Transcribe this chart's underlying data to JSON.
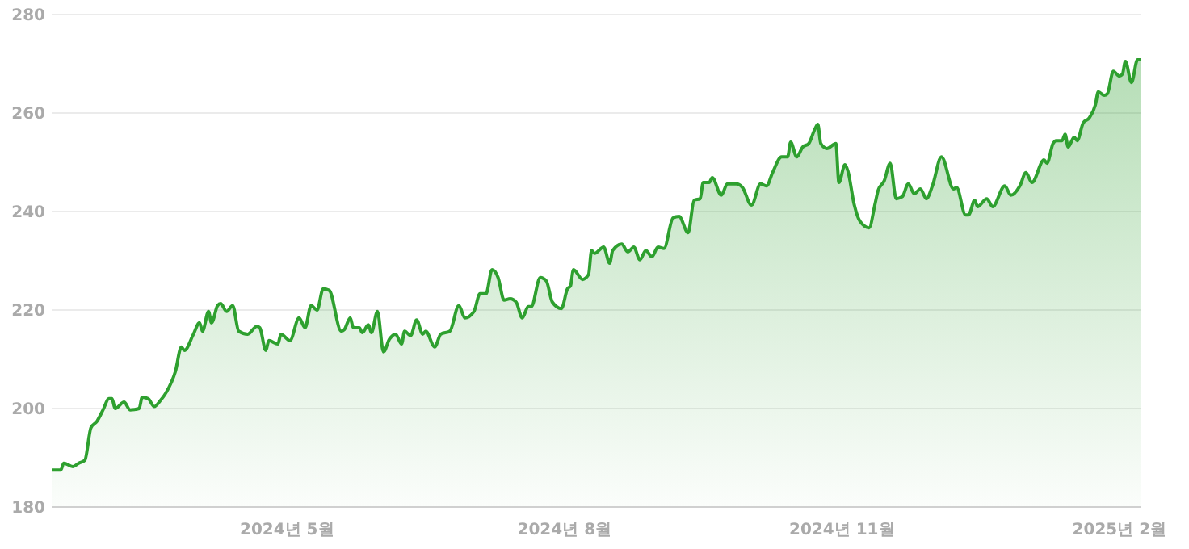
{
  "chart_data": {
    "type": "area",
    "xlim": [
      "2024-02-13",
      "2025-02-08"
    ],
    "ylim": [
      180,
      280
    ],
    "yticks": [
      180,
      200,
      220,
      240,
      260,
      280
    ],
    "xticks": [
      {
        "value": "2024-05-01",
        "label": "2024년 5월"
      },
      {
        "value": "2024-08-01",
        "label": "2024년 8월"
      },
      {
        "value": "2024-11-01",
        "label": "2024년 11월"
      },
      {
        "value": "2025-02-01",
        "label": "2025년 2월"
      }
    ],
    "grid": "y",
    "series": [
      {
        "color": "#2ea02f",
        "x": [
          "2024-02-13",
          "2024-02-16",
          "2024-02-17",
          "2024-02-20",
          "2024-02-22",
          "2024-02-24",
          "2024-02-26",
          "2024-02-28",
          "2024-03-01",
          "2024-03-03",
          "2024-03-04",
          "2024-03-05",
          "2024-03-08",
          "2024-03-10",
          "2024-03-13",
          "2024-03-14",
          "2024-03-16",
          "2024-03-18",
          "2024-03-20",
          "2024-03-22",
          "2024-03-25",
          "2024-03-27",
          "2024-03-28",
          "2024-03-31",
          "2024-04-02",
          "2024-04-03",
          "2024-04-05",
          "2024-04-06",
          "2024-04-08",
          "2024-04-09",
          "2024-04-11",
          "2024-04-13",
          "2024-04-15",
          "2024-04-18",
          "2024-04-21",
          "2024-04-22",
          "2024-04-24",
          "2024-04-25",
          "2024-04-28",
          "2024-04-29",
          "2024-05-02",
          "2024-05-05",
          "2024-05-07",
          "2024-05-09",
          "2024-05-11",
          "2024-05-13",
          "2024-05-15",
          "2024-05-19",
          "2024-05-20",
          "2024-05-22",
          "2024-05-23",
          "2024-05-25",
          "2024-05-26",
          "2024-05-28",
          "2024-05-29",
          "2024-05-31",
          "2024-06-02",
          "2024-06-04",
          "2024-06-06",
          "2024-06-08",
          "2024-06-09",
          "2024-06-11",
          "2024-06-13",
          "2024-06-15",
          "2024-06-16",
          "2024-06-19",
          "2024-06-21",
          "2024-06-24",
          "2024-06-27",
          "2024-06-29",
          "2024-07-02",
          "2024-07-04",
          "2024-07-06",
          "2024-07-08",
          "2024-07-10",
          "2024-07-12",
          "2024-07-14",
          "2024-07-16",
          "2024-07-18",
          "2024-07-20",
          "2024-07-21",
          "2024-07-24",
          "2024-07-26",
          "2024-07-28",
          "2024-07-31",
          "2024-08-02",
          "2024-08-03",
          "2024-08-04",
          "2024-08-07",
          "2024-08-09",
          "2024-08-10",
          "2024-08-11",
          "2024-08-14",
          "2024-08-16",
          "2024-08-17",
          "2024-08-20",
          "2024-08-22",
          "2024-08-24",
          "2024-08-26",
          "2024-08-28",
          "2024-08-30",
          "2024-09-01",
          "2024-09-03",
          "2024-09-06",
          "2024-09-08",
          "2024-09-11",
          "2024-09-13",
          "2024-09-15",
          "2024-09-16",
          "2024-09-18",
          "2024-09-19",
          "2024-09-22",
          "2024-09-24",
          "2024-09-27",
          "2024-09-29",
          "2024-10-02",
          "2024-10-05",
          "2024-10-07",
          "2024-10-09",
          "2024-10-12",
          "2024-10-14",
          "2024-10-15",
          "2024-10-17",
          "2024-10-19",
          "2024-10-21",
          "2024-10-23",
          "2024-10-24",
          "2024-10-25",
          "2024-10-27",
          "2024-10-30",
          "2024-10-31",
          "2024-11-02",
          "2024-11-03",
          "2024-11-05",
          "2024-11-07",
          "2024-11-10",
          "2024-11-12",
          "2024-11-13",
          "2024-11-15",
          "2024-11-17",
          "2024-11-19",
          "2024-11-21",
          "2024-11-23",
          "2024-11-25",
          "2024-11-27",
          "2024-11-29",
          "2024-12-01",
          "2024-12-04",
          "2024-12-08",
          "2024-12-09",
          "2024-12-12",
          "2024-12-13",
          "2024-12-15",
          "2024-12-16",
          "2024-12-19",
          "2024-12-21",
          "2024-12-25",
          "2024-12-27",
          "2024-12-30",
          "2025-01-01",
          "2025-01-03",
          "2025-01-07",
          "2025-01-08",
          "2025-01-10",
          "2025-01-11",
          "2025-01-13",
          "2025-01-14",
          "2025-01-15",
          "2025-01-17",
          "2025-01-18",
          "2025-01-20",
          "2025-01-22",
          "2025-01-24",
          "2025-01-25",
          "2025-01-27",
          "2025-01-28",
          "2025-01-30",
          "2025-02-01",
          "2025-02-02",
          "2025-02-03",
          "2025-02-05",
          "2025-02-07",
          "2025-02-08"
        ],
        "values": [
          187.5,
          187.5,
          188.9,
          188.2,
          188.9,
          189.5,
          196.1,
          197.4,
          199.7,
          202,
          202,
          200,
          201.3,
          199.7,
          200,
          202.3,
          202,
          200.4,
          201.6,
          203.3,
          207.5,
          212.5,
          211.8,
          215.1,
          217.4,
          215.7,
          219.7,
          217.4,
          220.9,
          221.3,
          219.7,
          220.9,
          215.7,
          215.1,
          216.7,
          216.4,
          211.8,
          213.8,
          213.1,
          215.1,
          213.8,
          218.4,
          216.4,
          220.9,
          220,
          224.3,
          224,
          215.7,
          216,
          218.4,
          216.4,
          216.4,
          215.4,
          217,
          215.4,
          219.7,
          211.5,
          214.1,
          215.1,
          213.1,
          215.7,
          214.8,
          218,
          215.1,
          215.7,
          212.5,
          215.1,
          215.7,
          220.9,
          218.4,
          219.7,
          223.3,
          223.3,
          228.2,
          226.6,
          222,
          222.3,
          221.6,
          218.4,
          220.7,
          220.7,
          226.6,
          225.9,
          221.6,
          220.3,
          224.3,
          224.9,
          228.2,
          226.2,
          227.2,
          232.1,
          231.5,
          232.8,
          229.5,
          232.1,
          233.4,
          231.8,
          232.8,
          230.2,
          232.1,
          230.8,
          232.8,
          232.5,
          238.7,
          239,
          235.7,
          242.3,
          242.6,
          245.9,
          245.9,
          246.9,
          243.3,
          245.6,
          245.6,
          244.9,
          241.3,
          245.6,
          245.2,
          247.9,
          251.1,
          251.1,
          254.1,
          251.1,
          253.1,
          253.8,
          256.7,
          257.7,
          253.8,
          252.8,
          253.8,
          245.9,
          249.5,
          248.2,
          241.6,
          238,
          236.7,
          241.6,
          244.3,
          246.2,
          249.8,
          242.6,
          243,
          245.6,
          243.6,
          244.6,
          242.6,
          245.2,
          251.1,
          244.6,
          244.9,
          239.3,
          239.3,
          242.3,
          241,
          242.6,
          241,
          245.2,
          243.3,
          245.2,
          247.9,
          245.9,
          250.5,
          249.8,
          253.8,
          254.4,
          254.4,
          255.7,
          253.1,
          255.1,
          254.4,
          258,
          259,
          261.6,
          264.3,
          263.6,
          263.9,
          268.5,
          267.5,
          267.9,
          270.5,
          266.2,
          270.8,
          270.8
        ]
      }
    ]
  }
}
